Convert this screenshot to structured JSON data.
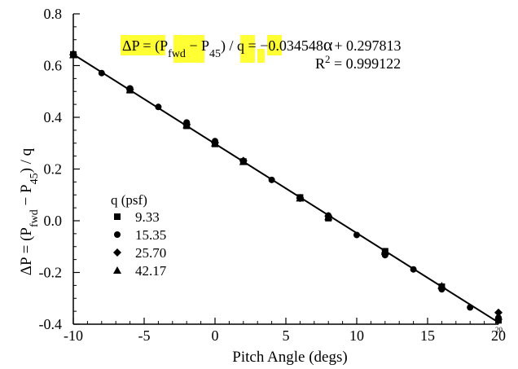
{
  "chart_data": {
    "type": "scatter",
    "title": "",
    "xlabel": "Pitch Angle (degs)",
    "ylabel": {
      "prefix": "ΔP = (P",
      "sub1": "fwd",
      "mid": " − P",
      "sub2": "45",
      "suffix": ") / q"
    },
    "xlim": [
      -10,
      20
    ],
    "ylim": [
      -0.4,
      0.8
    ],
    "xticks": [
      "-10",
      "-5",
      "0",
      "5",
      "10",
      "15",
      "20"
    ],
    "yticks": [
      "-0.4",
      "-0.2",
      "0.0",
      "0.2",
      "0.4",
      "0.6",
      "0.8"
    ],
    "corner_label": "20",
    "grid": false,
    "legend": {
      "placement": "lower-left",
      "header": "q  (psf)",
      "entries": [
        {
          "label": "9.33",
          "marker": "square"
        },
        {
          "label": "15.35",
          "marker": "circle"
        },
        {
          "label": "25.70",
          "marker": "diamond"
        },
        {
          "label": "42.17",
          "marker": "triangle"
        }
      ]
    },
    "fit": {
      "slope": -0.034548,
      "intercept": 0.297813,
      "x_range": [
        -10,
        20
      ],
      "equation": {
        "lhs_a": "ΔP = (P",
        "lhs_sub1": "fwd",
        "lhs_b": " − P",
        "lhs_sub2": "45",
        "lhs_c": ") / q",
        "equals": " = ",
        "rhs_a": "−0.034548",
        "alpha": "α",
        "rhs_b": "+ 0.297813"
      },
      "r2": {
        "label": "R",
        "sup": "2",
        "value": " = 0.999122"
      }
    },
    "series": [
      {
        "name": "9.33",
        "marker": "square",
        "points": [
          [
            -10,
            0.643
          ],
          [
            -6,
            0.505
          ],
          [
            -2,
            0.367
          ],
          [
            0,
            0.297
          ],
          [
            2,
            0.229
          ],
          [
            6,
            0.09
          ],
          [
            8,
            0.01
          ],
          [
            12,
            -0.118
          ],
          [
            16,
            -0.255
          ],
          [
            20,
            -0.385
          ]
        ]
      },
      {
        "name": "15.35",
        "marker": "circle",
        "points": [
          [
            -10,
            0.645
          ],
          [
            -8,
            0.571
          ],
          [
            -6,
            0.512
          ],
          [
            -4,
            0.44
          ],
          [
            -2,
            0.38
          ],
          [
            0,
            0.308
          ],
          [
            2,
            0.231
          ],
          [
            4,
            0.158
          ],
          [
            6,
            0.086
          ],
          [
            8,
            0.02
          ],
          [
            10,
            -0.055
          ],
          [
            12,
            -0.133
          ],
          [
            14,
            -0.188
          ],
          [
            16,
            -0.265
          ],
          [
            18,
            -0.335
          ],
          [
            20,
            -0.375
          ]
        ]
      },
      {
        "name": "25.70",
        "marker": "diamond",
        "points": [
          [
            -10,
            0.642
          ],
          [
            -6,
            0.508
          ],
          [
            -2,
            0.372
          ],
          [
            0,
            0.302
          ],
          [
            2,
            0.232
          ],
          [
            6,
            0.088
          ],
          [
            8,
            0.018
          ],
          [
            12,
            -0.125
          ],
          [
            16,
            -0.26
          ],
          [
            20,
            -0.355
          ]
        ]
      },
      {
        "name": "42.17",
        "marker": "triangle",
        "points": [
          [
            -10,
            0.641
          ],
          [
            -6,
            0.506
          ],
          [
            -2,
            0.37
          ],
          [
            0,
            0.3
          ],
          [
            2,
            0.228
          ],
          [
            6,
            0.087
          ],
          [
            8,
            0.015
          ],
          [
            12,
            -0.12
          ],
          [
            16,
            -0.252
          ],
          [
            20,
            -0.37
          ]
        ]
      }
    ]
  }
}
